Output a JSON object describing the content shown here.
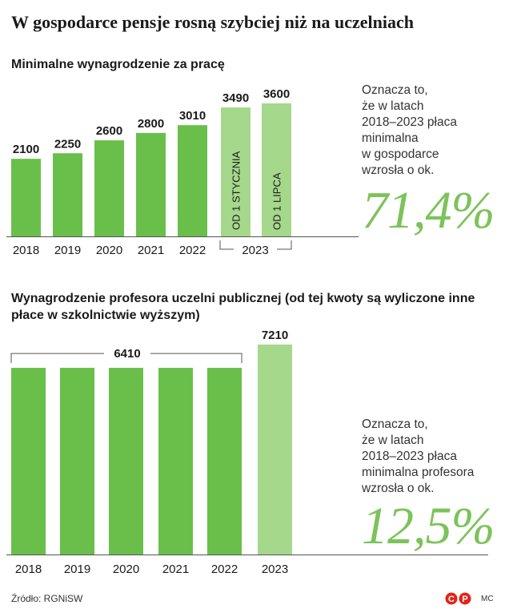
{
  "title": "W gospodarce pensje rosną szybciej niż na uczelniach",
  "source": "Źródło: RGNiSW",
  "author": "MC",
  "colors": {
    "bar": "#6abf4b",
    "bar_light": "#a6d88b",
    "accent": "#7cc35a"
  },
  "logo_icon": "copyright-p-icon",
  "chart_data": [
    {
      "type": "bar",
      "title": "Minimalne wynagrodzenie za pracę",
      "categories": [
        "2018",
        "2019",
        "2020",
        "2021",
        "2022",
        "2023",
        "2023"
      ],
      "bar_labels": [
        "",
        "",
        "",
        "",
        "",
        "OD 1 STYCZNIA",
        "OD 1 LIPCA"
      ],
      "values": [
        2100,
        2250,
        2600,
        2800,
        3010,
        3490,
        3600
      ],
      "value_labels": [
        "2100",
        "2250",
        "2600",
        "2800",
        "3010",
        "3490",
        "3600"
      ],
      "x_tick_labels": [
        "2018",
        "2019",
        "2020",
        "2021",
        "2022",
        "2023"
      ],
      "ylim": [
        0,
        3600
      ],
      "note": [
        "Oznacza to,",
        "że w latach",
        "2018–2023 płaca",
        "minimalna",
        "w gospodarce",
        "wzrosła o ok."
      ],
      "highlight": "71,4%"
    },
    {
      "type": "bar",
      "title": "Wynagrodzenie profesora uczelni publicznej (od tej kwoty są wyliczone inne płace w szkolnictwie wyższym)",
      "categories": [
        "2018",
        "2019",
        "2020",
        "2021",
        "2022",
        "2023"
      ],
      "values": [
        6410,
        6410,
        6410,
        6410,
        6410,
        7210
      ],
      "group_label": "6410",
      "value_labels": [
        "",
        "",
        "",
        "",
        "",
        "7210"
      ],
      "ylim": [
        0,
        7210
      ],
      "note": [
        "Oznacza to,",
        "że w latach",
        "2018–2023 płaca",
        "minimalna profesora",
        "wzrosła o ok."
      ],
      "highlight": "12,5%"
    }
  ]
}
